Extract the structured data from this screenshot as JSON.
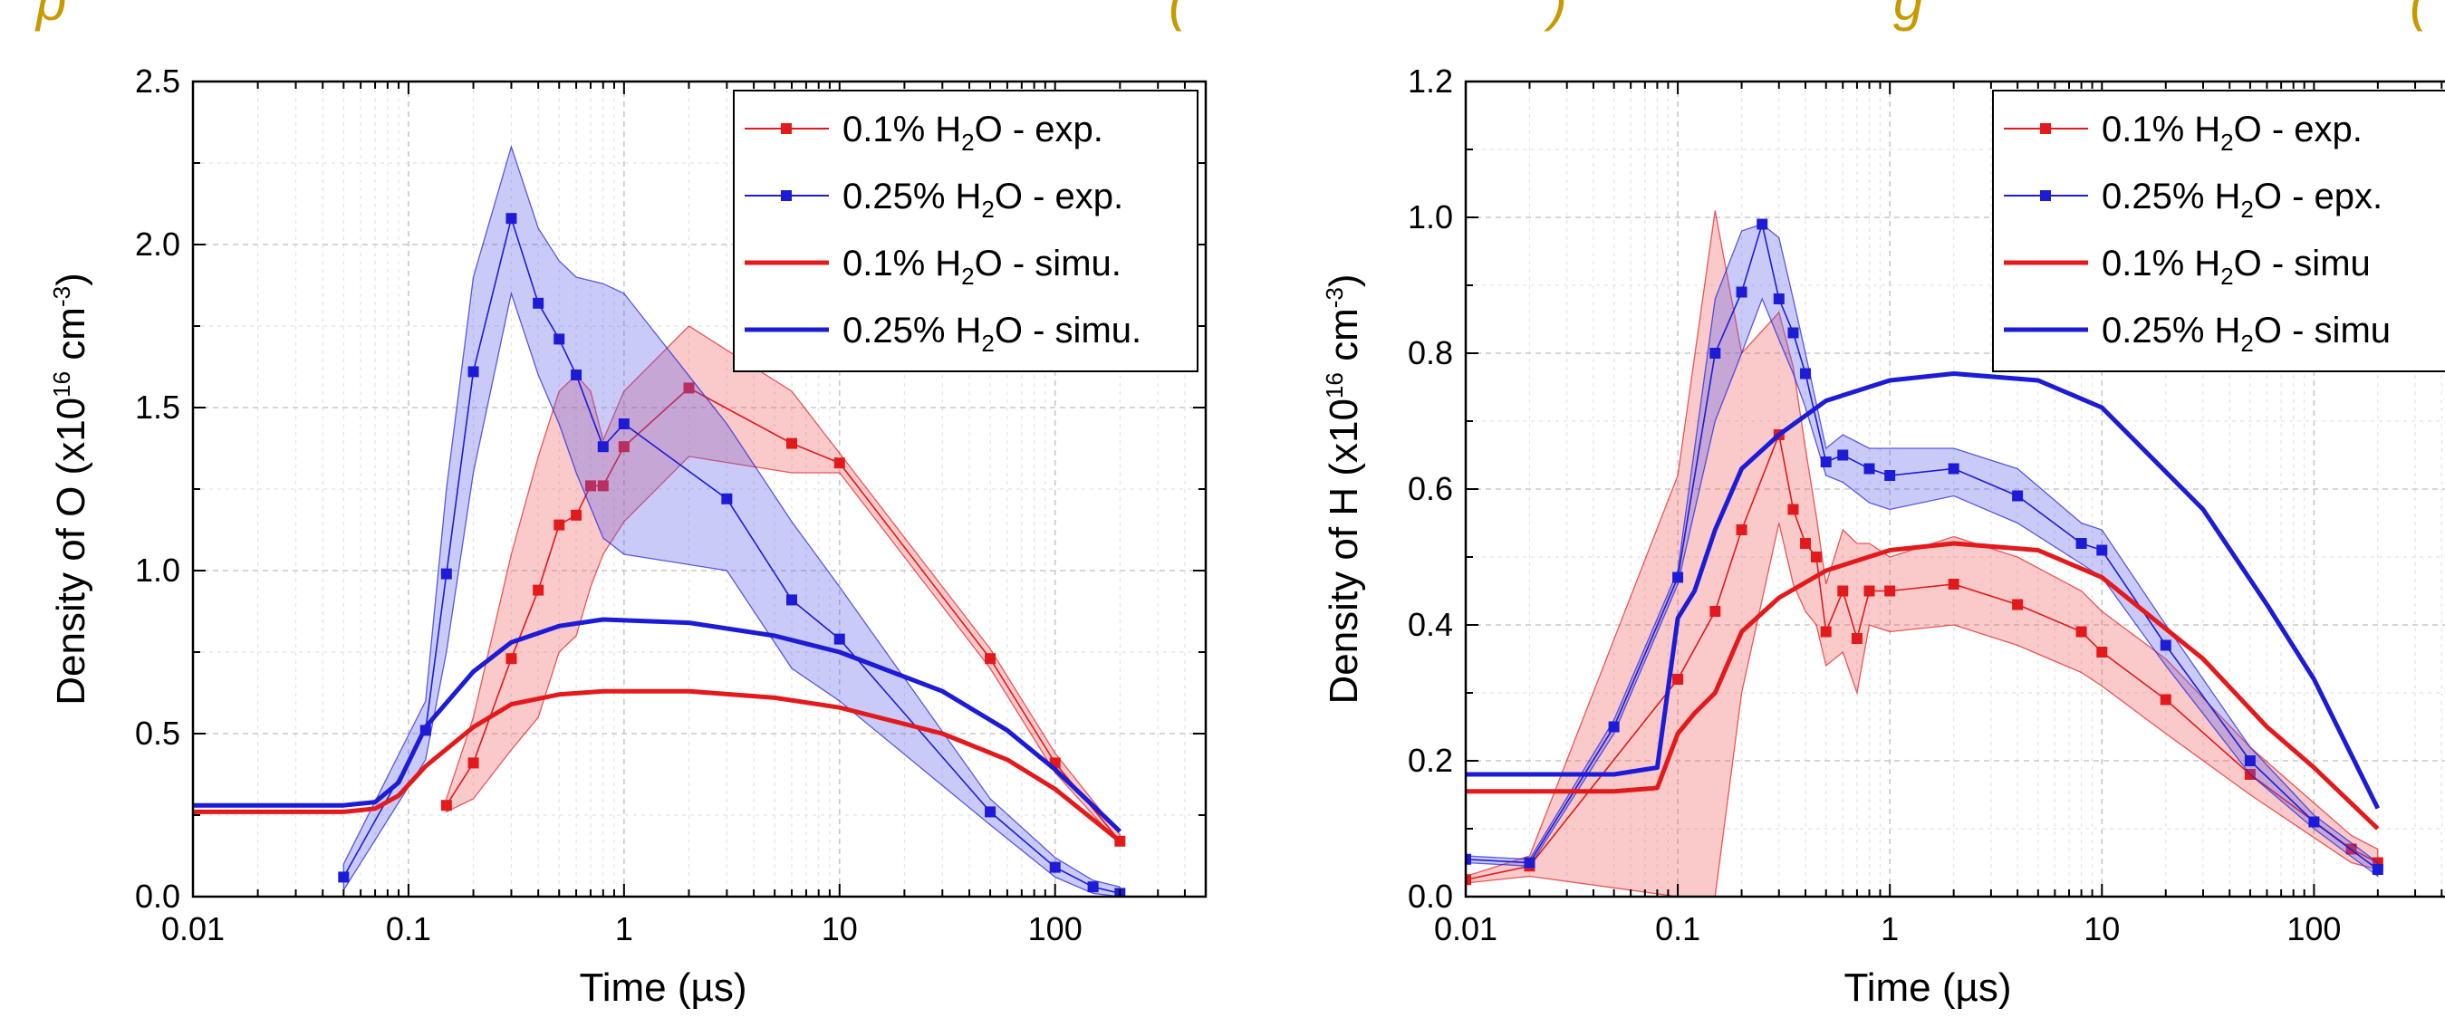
{
  "banner": {
    "left_text": "p",
    "mid_text": "(",
    "mid_text2": ")",
    "mid_text3": "g",
    "right_text": "("
  },
  "chart_data": [
    {
      "type": "line",
      "title": "",
      "xlabel": "Time (µs)",
      "ylabel_main": "Density of O (x10",
      "ylabel_sup": "16",
      "ylabel_unit": " cm",
      "ylabel_unitsup": "-3",
      "ylabel_close": ")",
      "xscale": "log",
      "xlim": [
        0.01,
        200
      ],
      "ylim": [
        0.0,
        2.5
      ],
      "xticks": [
        "0.01",
        "0.1",
        "1",
        "10",
        "100"
      ],
      "yticks": [
        "0.0",
        "0.5",
        "1.0",
        "1.5",
        "2.0",
        "2.5"
      ],
      "grid": true,
      "legend_position": "top-right",
      "legend": [
        {
          "label_pre": "0.1% H",
          "label_sub": "2",
          "label_post": "O   - exp."
        },
        {
          "label_pre": "0.25% H",
          "label_sub": "2",
          "label_post": "O - exp."
        },
        {
          "label_pre": "0.1% H",
          "label_sub": "2",
          "label_post": "O   - simu."
        },
        {
          "label_pre": "0.25% H",
          "label_sub": "2",
          "label_post": "O - simu."
        }
      ],
      "series": [
        {
          "name": "0.1% H2O - exp.",
          "kind": "exp",
          "color": "#e31a1c",
          "x": [
            0.15,
            0.2,
            0.3,
            0.4,
            0.5,
            0.6,
            0.7,
            0.8,
            1,
            2,
            6,
            10,
            50,
            100,
            200
          ],
          "y": [
            0.28,
            0.41,
            0.73,
            0.94,
            1.14,
            1.17,
            1.26,
            1.26,
            1.38,
            1.56,
            1.39,
            1.33,
            0.73,
            0.41,
            0.17
          ],
          "band_upper": [
            0.3,
            0.55,
            1.05,
            1.35,
            1.55,
            1.6,
            1.55,
            1.4,
            1.55,
            1.75,
            1.55,
            1.36,
            0.76,
            0.44,
            0.19
          ],
          "band_lower": [
            0.26,
            0.3,
            0.45,
            0.55,
            0.75,
            0.8,
            0.95,
            1.05,
            1.15,
            1.35,
            1.3,
            1.3,
            0.7,
            0.38,
            0.16
          ]
        },
        {
          "name": "0.25% H2O - exp.",
          "kind": "exp",
          "color": "#1c1cd6",
          "x": [
            0.05,
            0.12,
            0.15,
            0.2,
            0.3,
            0.4,
            0.5,
            0.6,
            0.8,
            1,
            3,
            6,
            10,
            50,
            100,
            150,
            200
          ],
          "y": [
            0.06,
            0.51,
            0.99,
            1.61,
            2.08,
            1.82,
            1.71,
            1.6,
            1.38,
            1.45,
            1.22,
            0.91,
            0.79,
            0.26,
            0.09,
            0.03,
            0.01
          ],
          "band_upper": [
            0.1,
            0.6,
            1.25,
            1.9,
            2.3,
            2.05,
            1.95,
            1.9,
            1.88,
            1.85,
            1.45,
            1.15,
            0.95,
            0.3,
            0.12,
            0.05,
            0.03
          ],
          "band_lower": [
            0.02,
            0.42,
            0.75,
            1.3,
            1.85,
            1.6,
            1.45,
            1.3,
            1.1,
            1.05,
            1.0,
            0.7,
            0.6,
            0.22,
            0.06,
            0.01,
            0.0
          ]
        },
        {
          "name": "0.1% H2O - simu.",
          "kind": "simu",
          "color": "#e31a1c",
          "x": [
            0.01,
            0.05,
            0.07,
            0.09,
            0.12,
            0.2,
            0.3,
            0.5,
            0.8,
            2,
            5,
            10,
            30,
            60,
            100,
            200
          ],
          "y": [
            0.26,
            0.26,
            0.27,
            0.31,
            0.4,
            0.52,
            0.59,
            0.62,
            0.63,
            0.63,
            0.61,
            0.58,
            0.5,
            0.42,
            0.33,
            0.17
          ]
        },
        {
          "name": "0.25% H2O - simu.",
          "kind": "simu",
          "color": "#1c1cd6",
          "x": [
            0.01,
            0.05,
            0.07,
            0.09,
            0.12,
            0.2,
            0.3,
            0.5,
            0.8,
            2,
            5,
            10,
            30,
            60,
            100,
            200
          ],
          "y": [
            0.28,
            0.28,
            0.29,
            0.35,
            0.52,
            0.69,
            0.78,
            0.83,
            0.85,
            0.84,
            0.8,
            0.75,
            0.63,
            0.51,
            0.39,
            0.2
          ]
        }
      ]
    },
    {
      "type": "line",
      "title": "",
      "xlabel": "Time (µs)",
      "ylabel_main": "Density of H (x10",
      "ylabel_sup": "16",
      "ylabel_unit": " cm",
      "ylabel_unitsup": "-3",
      "ylabel_close": ")",
      "xscale": "log",
      "xlim": [
        0.01,
        200
      ],
      "ylim": [
        0.0,
        1.2
      ],
      "xticks": [
        "0.01",
        "0.1",
        "1",
        "10",
        "100"
      ],
      "yticks": [
        "0.0",
        "0.2",
        "0.4",
        "0.6",
        "0.8",
        "1.0",
        "1.2"
      ],
      "grid": true,
      "legend_position": "top-right",
      "legend": [
        {
          "label_pre": "0.1% H",
          "label_sub": "2",
          "label_post": "O   - exp."
        },
        {
          "label_pre": "0.25% H",
          "label_sub": "2",
          "label_post": "O - epx."
        },
        {
          "label_pre": "0.1% H",
          "label_sub": "2",
          "label_post": "O   - simu"
        },
        {
          "label_pre": "0.25% H",
          "label_sub": "2",
          "label_post": "O - simu"
        }
      ],
      "series": [
        {
          "name": "0.1% H2O - exp.",
          "kind": "exp",
          "color": "#e31a1c",
          "x": [
            0.01,
            0.02,
            0.1,
            0.15,
            0.2,
            0.3,
            0.35,
            0.4,
            0.45,
            0.5,
            0.6,
            0.7,
            0.8,
            1,
            2,
            4,
            8,
            10,
            20,
            50,
            150,
            200
          ],
          "y": [
            0.025,
            0.045,
            0.32,
            0.42,
            0.54,
            0.68,
            0.57,
            0.52,
            0.5,
            0.39,
            0.45,
            0.38,
            0.45,
            0.45,
            0.46,
            0.43,
            0.39,
            0.36,
            0.29,
            0.18,
            0.07,
            0.05
          ],
          "band_upper": [
            0.03,
            0.06,
            0.62,
            1.01,
            0.8,
            0.86,
            0.78,
            0.66,
            0.56,
            0.46,
            0.54,
            0.52,
            0.52,
            0.5,
            0.53,
            0.5,
            0.45,
            0.42,
            0.35,
            0.22,
            0.09,
            0.07
          ],
          "band_lower": [
            0.02,
            0.03,
            0.0,
            0.0,
            0.3,
            0.55,
            0.46,
            0.42,
            0.4,
            0.34,
            0.36,
            0.3,
            0.4,
            0.39,
            0.4,
            0.37,
            0.33,
            0.31,
            0.24,
            0.15,
            0.05,
            0.04
          ]
        },
        {
          "name": "0.25% H2O - epx.",
          "kind": "exp",
          "color": "#1c1cd6",
          "x": [
            0.01,
            0.02,
            0.05,
            0.1,
            0.15,
            0.2,
            0.25,
            0.3,
            0.35,
            0.4,
            0.5,
            0.6,
            0.8,
            1,
            2,
            4,
            8,
            10,
            20,
            50,
            100,
            200
          ],
          "y": [
            0.055,
            0.05,
            0.25,
            0.47,
            0.8,
            0.89,
            0.99,
            0.88,
            0.83,
            0.77,
            0.64,
            0.65,
            0.63,
            0.62,
            0.63,
            0.59,
            0.52,
            0.51,
            0.37,
            0.2,
            0.11,
            0.04
          ],
          "band_upper": [
            0.06,
            0.055,
            0.26,
            0.48,
            0.88,
            0.98,
            0.99,
            0.97,
            0.88,
            0.8,
            0.66,
            0.68,
            0.66,
            0.66,
            0.66,
            0.63,
            0.55,
            0.54,
            0.4,
            0.22,
            0.12,
            0.05
          ],
          "band_lower": [
            0.05,
            0.045,
            0.24,
            0.46,
            0.7,
            0.8,
            0.88,
            0.82,
            0.77,
            0.72,
            0.62,
            0.61,
            0.58,
            0.57,
            0.59,
            0.55,
            0.49,
            0.47,
            0.34,
            0.18,
            0.1,
            0.03
          ]
        },
        {
          "name": "0.1% H2O - simu",
          "kind": "simu",
          "color": "#e31a1c",
          "x": [
            0.01,
            0.05,
            0.08,
            0.1,
            0.12,
            0.15,
            0.2,
            0.3,
            0.5,
            1,
            2,
            5,
            10,
            30,
            60,
            100,
            200
          ],
          "y": [
            0.155,
            0.155,
            0.16,
            0.24,
            0.27,
            0.3,
            0.39,
            0.44,
            0.48,
            0.51,
            0.52,
            0.51,
            0.47,
            0.35,
            0.25,
            0.19,
            0.1
          ],
          "band_upper": [],
          "band_lower": []
        },
        {
          "name": "0.25% H2O - simu",
          "kind": "simu",
          "color": "#1c1cd6",
          "x": [
            0.01,
            0.05,
            0.08,
            0.1,
            0.12,
            0.15,
            0.2,
            0.3,
            0.5,
            1,
            2,
            5,
            10,
            30,
            60,
            100,
            200
          ],
          "y": [
            0.18,
            0.18,
            0.19,
            0.41,
            0.45,
            0.54,
            0.63,
            0.68,
            0.73,
            0.76,
            0.77,
            0.76,
            0.72,
            0.57,
            0.43,
            0.32,
            0.13
          ]
        }
      ]
    }
  ]
}
